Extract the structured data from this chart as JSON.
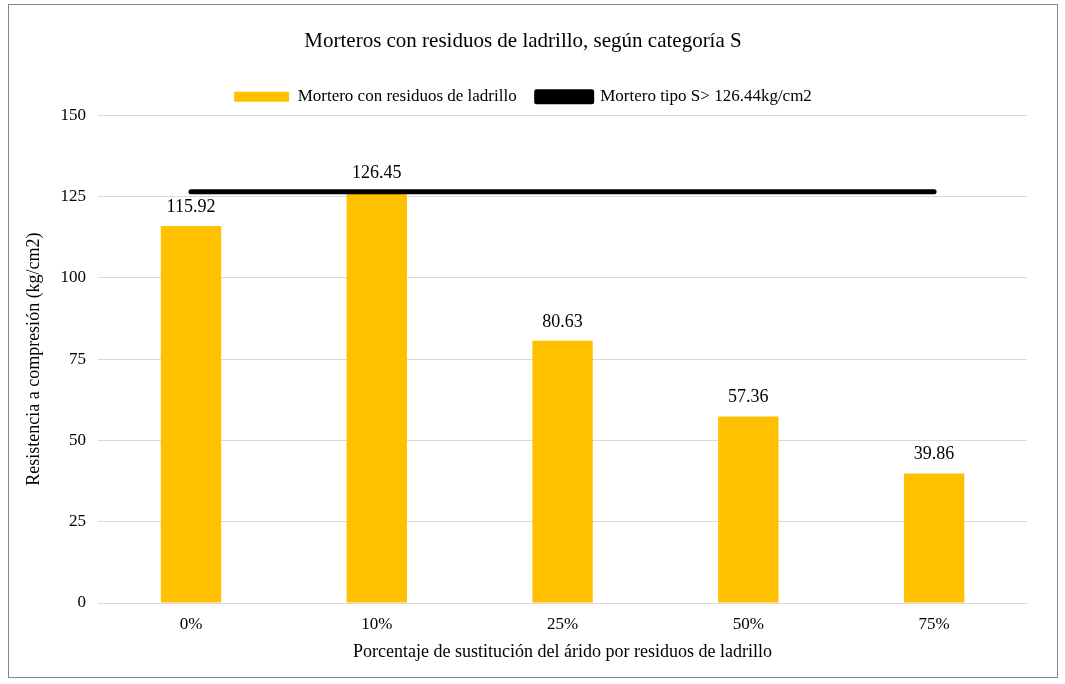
{
  "chart_data": {
    "type": "bar",
    "title": "Morteros con residuos de ladrillo, según categoría S",
    "xlabel": "Porcentaje de sustitución del árido por residuos de ladrillo",
    "ylabel": "Resistencia a compresión (kg/cm2)",
    "categories": [
      "0%",
      "10%",
      "25%",
      "50%",
      "75%"
    ],
    "series": [
      {
        "name": "Mortero con residuos de ladrillo",
        "color": "#ffc000",
        "values": [
          115.92,
          126.45,
          80.63,
          57.36,
          39.86
        ],
        "value_labels": [
          "115.92",
          "126.45",
          "80.63",
          "57.36",
          "39.86"
        ]
      },
      {
        "name": "Mortero tipo S> 126.44kg/cm2",
        "type": "line",
        "color": "#000000",
        "values": [
          126.44,
          126.44,
          126.44,
          126.44,
          126.44
        ]
      }
    ],
    "ylim": [
      0,
      150
    ],
    "yticks": [
      0,
      25,
      50,
      75,
      100,
      125,
      150
    ],
    "grid": "y",
    "legend": "top",
    "marker": "none"
  }
}
